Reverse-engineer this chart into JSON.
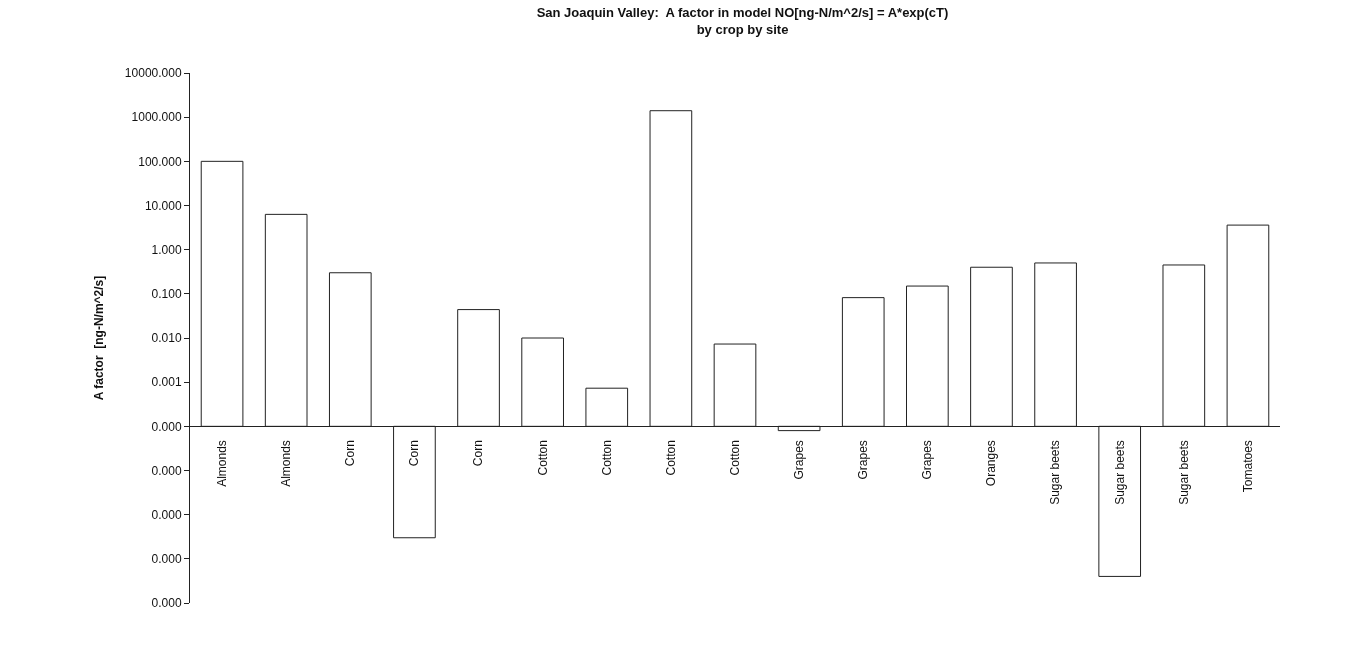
{
  "chart_data": {
    "type": "bar",
    "title": "San Joaquin Valley:  A factor in model NO[ng-N/m^2/s] = A*exp(cT)\nby crop by site",
    "ylabel": "A factor  [ng-N/m^2/s]",
    "categories": [
      "Almonds",
      "Almonds",
      "Corn",
      "Corn",
      "Corn",
      "Cotton",
      "Cotton",
      "Cotton",
      "Cotton",
      "Grapes",
      "Grapes",
      "Grapes",
      "Oranges",
      "Sugar beets",
      "Sugar beets",
      "Sugar beets",
      "Tomatoes"
    ],
    "values": [
      100,
      6.3,
      0.3,
      -9.97e-05,
      0.0439,
      0.0099,
      0.00063,
      1400,
      0.0072,
      -2e-05,
      0.0819,
      0.1499,
      0.4,
      0.5,
      -9.996e-05,
      0.45,
      3.6
    ],
    "base": [
      0.0001,
      0.0001,
      0.0001,
      0.0001,
      0.0001,
      0.0001,
      0.0001,
      0.0001,
      0.0001,
      0.0001,
      0.0001,
      0.0001,
      0.0001,
      0.0001,
      0.0001,
      0.0001,
      0.0001
    ],
    "color": "#ffffff",
    "log": true,
    "ylim": [
      1e-08,
      10000
    ],
    "yticks": [
      {
        "value": 10000,
        "label": "10000.000"
      },
      {
        "value": 1000,
        "label": "1000.000"
      },
      {
        "value": 100,
        "label": "100.000"
      },
      {
        "value": 10,
        "label": "10.000"
      },
      {
        "value": 1,
        "label": "1.000"
      },
      {
        "value": 0.1,
        "label": "0.100"
      },
      {
        "value": 0.01,
        "label": "0.010"
      },
      {
        "value": 0.001,
        "label": "0.001"
      },
      {
        "value": 0.0001,
        "label": "0.000"
      },
      {
        "value": 1e-05,
        "label": "0.000"
      },
      {
        "value": 1e-06,
        "label": "0.000"
      },
      {
        "value": 1e-07,
        "label": "0.000"
      },
      {
        "value": 1e-08,
        "label": "0.000"
      }
    ],
    "grid": false
  }
}
